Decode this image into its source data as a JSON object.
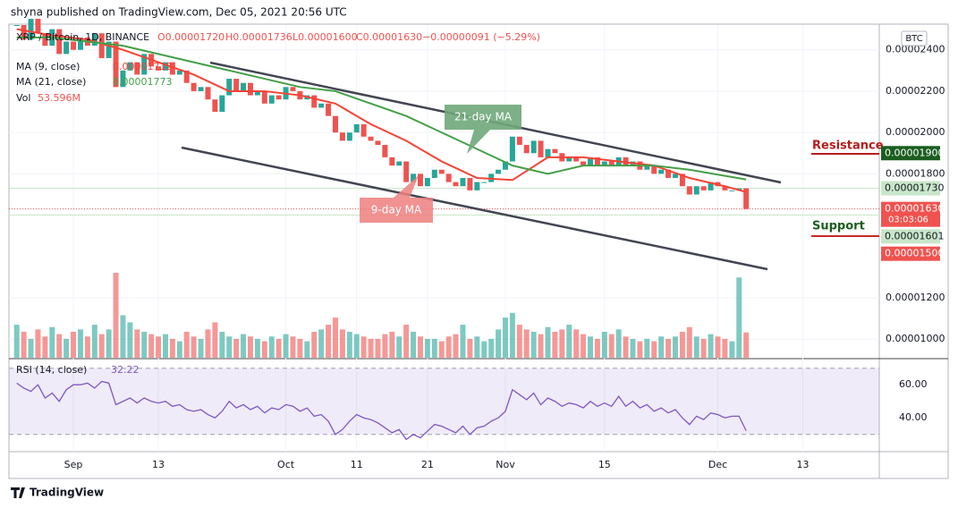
{
  "header": "shyna published on TradingView.com, Dec 05, 2021 20:56 UTC",
  "footer": "TradingView",
  "chart_data": {
    "type": "candlestick",
    "symbol": "XRP / Bitcoin, 1D, BINANCE",
    "ohlc_text": [
      "O0.00001720",
      "H0.00001736",
      "L0.00001600",
      "C0.00001630",
      "−0.00000091 (−5.29%)"
    ],
    "currency": "BTC",
    "up_color": "#26a69a",
    "down_color": "#ef5350",
    "xlim": [
      -9.1,
      113.8
    ],
    "xticks": [
      {
        "value": 0,
        "label": "Sep"
      },
      {
        "value": 12,
        "label": "13"
      },
      {
        "value": 30,
        "label": "Oct"
      },
      {
        "value": 40,
        "label": "11"
      },
      {
        "value": 50,
        "label": "21"
      },
      {
        "value": 61,
        "label": "Nov"
      },
      {
        "value": 75,
        "label": "15"
      },
      {
        "value": 91,
        "label": "Dec"
      },
      {
        "value": 103,
        "label": "13"
      }
    ],
    "x": [
      -8,
      -7,
      -6,
      -5,
      -4,
      -3,
      -2,
      -1,
      0,
      1,
      2,
      3,
      4,
      5,
      6,
      7,
      8,
      9,
      10,
      11,
      12,
      13,
      14,
      15,
      16,
      17,
      18,
      19,
      20,
      21,
      22,
      23,
      24,
      25,
      26,
      27,
      28,
      29,
      30,
      31,
      32,
      33,
      34,
      35,
      36,
      37,
      38,
      39,
      40,
      41,
      42,
      43,
      44,
      45,
      46,
      47,
      48,
      49,
      50,
      51,
      52,
      53,
      54,
      55,
      56,
      57,
      58,
      59,
      60,
      61,
      62,
      63,
      64,
      65,
      66,
      67,
      68,
      69,
      70,
      71,
      72,
      73,
      74,
      75,
      76,
      77,
      78,
      79,
      80,
      81,
      82,
      83,
      84,
      85,
      86,
      87,
      88,
      89,
      90,
      91,
      92,
      93,
      94,
      95
    ],
    "close": [
      2.52e-05,
      2.45e-05,
      2.55e-05,
      2.48e-05,
      2.42e-05,
      2.5e-05,
      2.38e-05,
      2.44e-05,
      2.4e-05,
      2.46e-05,
      2.42e-05,
      2.48e-05,
      2.36e-05,
      2.44e-05,
      2.22e-05,
      2.3e-05,
      2.34e-05,
      2.28e-05,
      2.38e-05,
      2.32e-05,
      2.3e-05,
      2.34e-05,
      2.28e-05,
      2.3e-05,
      2.24e-05,
      2.2e-05,
      2.22e-05,
      2.16e-05,
      2.1e-05,
      2.18e-05,
      2.26e-05,
      2.2e-05,
      2.24e-05,
      2.18e-05,
      2.2e-05,
      2.14e-05,
      2.18e-05,
      2.16e-05,
      2.22e-05,
      2.2e-05,
      2.16e-05,
      2.18e-05,
      2.12e-05,
      2.14e-05,
      2.08e-05,
      2e-05,
      1.96e-05,
      2e-05,
      2.04e-05,
      1.98e-05,
      1.96e-05,
      1.94e-05,
      1.88e-05,
      1.84e-05,
      1.86e-05,
      1.76e-05,
      1.8e-05,
      1.74e-05,
      1.78e-05,
      1.82e-05,
      1.8e-05,
      1.76e-05,
      1.74e-05,
      1.78e-05,
      1.72e-05,
      1.76e-05,
      1.76e-05,
      1.8e-05,
      1.82e-05,
      1.86e-05,
      1.98e-05,
      1.94e-05,
      1.9e-05,
      1.96e-05,
      1.88e-05,
      1.92e-05,
      1.9e-05,
      1.86e-05,
      1.88e-05,
      1.86e-05,
      1.84e-05,
      1.88e-05,
      1.84e-05,
      1.86e-05,
      1.84e-05,
      1.88e-05,
      1.84e-05,
      1.86e-05,
      1.82e-05,
      1.84e-05,
      1.8e-05,
      1.82e-05,
      1.78e-05,
      1.8e-05,
      1.74e-05,
      1.7e-05,
      1.74e-05,
      1.72e-05,
      1.76e-05,
      1.74e-05,
      1.72e-05,
      1.72e-05,
      1.73e-05,
      1.63e-05
    ],
    "volume": {
      "label": "Vol",
      "value_label": "53.596M",
      "values": [
        70,
        55,
        40,
        60,
        45,
        65,
        50,
        40,
        55,
        60,
        45,
        70,
        50,
        60,
        180,
        90,
        75,
        60,
        55,
        50,
        45,
        50,
        40,
        35,
        55,
        45,
        40,
        60,
        75,
        55,
        45,
        40,
        50,
        45,
        40,
        35,
        45,
        40,
        50,
        45,
        40,
        35,
        55,
        60,
        70,
        85,
        60,
        55,
        50,
        45,
        40,
        40,
        50,
        55,
        45,
        70,
        55,
        45,
        40,
        40,
        35,
        45,
        50,
        70,
        40,
        45,
        35,
        40,
        60,
        85,
        95,
        70,
        60,
        55,
        50,
        65,
        55,
        60,
        70,
        60,
        50,
        45,
        40,
        55,
        50,
        60,
        45,
        40,
        35,
        40,
        35,
        45,
        40,
        45,
        55,
        65,
        45,
        40,
        50,
        45,
        40,
        35,
        170,
        53.596
      ]
    },
    "ma": [
      {
        "name": "MA (9, close)",
        "value_label": "0.00001712",
        "color": "#f44336",
        "x": [
          -8,
          -3,
          2,
          7,
          12,
          17,
          22,
          27,
          32,
          37,
          42,
          47,
          52,
          57,
          62,
          67,
          72,
          77,
          82,
          87,
          92,
          95
        ],
        "values": [
          2.5e-05,
          2.47e-05,
          2.45e-05,
          2.4e-05,
          2.34e-05,
          2.28e-05,
          2.2e-05,
          2.2e-05,
          2.18e-05,
          2.14e-05,
          2.04e-05,
          1.96e-05,
          1.86e-05,
          1.78e-05,
          1.77e-05,
          1.88e-05,
          1.88e-05,
          1.86e-05,
          1.84e-05,
          1.78e-05,
          1.74e-05,
          1.712e-05
        ]
      },
      {
        "name": "MA (21, close)",
        "value_label": "0.00001773",
        "color": "#43a047",
        "x": [
          -8,
          -3,
          2,
          7,
          12,
          17,
          22,
          27,
          32,
          37,
          42,
          47,
          52,
          57,
          62,
          67,
          72,
          77,
          82,
          87,
          92,
          95
        ],
        "values": [
          2.46e-05,
          2.46e-05,
          2.44e-05,
          2.42e-05,
          2.38e-05,
          2.34e-05,
          2.3e-05,
          2.26e-05,
          2.22e-05,
          2.2e-05,
          2.14e-05,
          2.08e-05,
          2e-05,
          1.92e-05,
          1.84e-05,
          1.8e-05,
          1.84e-05,
          1.84e-05,
          1.84e-05,
          1.82e-05,
          1.79e-05,
          1.773e-05
        ]
      }
    ],
    "ylim": [
      9.1e-06,
      2.52e-05
    ],
    "yticks": [
      {
        "value": 2.4e-05,
        "label": "0.00002400"
      },
      {
        "value": 2.2e-05,
        "label": "0.00002200"
      },
      {
        "value": 2e-05,
        "label": "0.00002000"
      },
      {
        "value": 1.8e-05,
        "label": "0.00001800"
      },
      {
        "value": 1.2e-05,
        "label": "0.00001200"
      },
      {
        "value": 1e-05,
        "label": "0.00001000"
      }
    ],
    "price_labels": [
      {
        "value": 1.9e-05,
        "label": "0.00001900",
        "bg": "#1b5e20",
        "text_color": "#ffffff"
      },
      {
        "value": 1.73e-05,
        "label": "0.00001730",
        "bg": "#c8e6c9",
        "text_color": "#131722"
      },
      {
        "value": 1.63e-05,
        "label": "0.00001630",
        "bg": "#ef5350",
        "text_color": "#ffffff",
        "countdown": "03:03:06"
      },
      {
        "value": 1.601e-05,
        "label": "0.00001601",
        "bg": "#c8e6c9",
        "text_color": "#131722"
      },
      {
        "value": 1.5e-05,
        "label": "0.00001500",
        "bg": "#ef5350",
        "text_color": "#ffffff"
      }
    ],
    "annotations": {
      "resistance": "Resistance",
      "support": "Support",
      "ma21": "21-day MA",
      "ma9": "9-day MA"
    },
    "rsi": {
      "name": "RSI (14, close)",
      "value_label": "32.22",
      "color": "#7e57c2",
      "ylim": [
        19.6,
        74.7
      ],
      "yticks": [
        {
          "value": 60,
          "label": "60.00"
        },
        {
          "value": 40,
          "label": "40.00"
        }
      ],
      "band": [
        30,
        70
      ],
      "values": [
        61,
        58,
        56,
        60,
        52,
        55,
        50,
        57,
        60,
        60,
        61,
        58,
        62,
        61,
        48,
        50,
        52,
        49,
        52,
        50,
        49,
        50,
        47,
        48,
        45,
        44,
        45,
        42,
        40,
        44,
        50,
        46,
        48,
        45,
        47,
        43,
        46,
        45,
        48,
        47,
        44,
        46,
        41,
        42,
        38,
        30,
        33,
        38,
        42,
        40,
        39,
        37,
        34,
        31,
        33,
        27,
        30,
        28,
        32,
        36,
        35,
        33,
        31,
        35,
        30,
        34,
        35,
        38,
        40,
        44,
        57,
        54,
        51,
        55,
        48,
        52,
        50,
        47,
        49,
        48,
        46,
        50,
        47,
        49,
        47,
        53,
        47,
        50,
        46,
        48,
        44,
        46,
        43,
        45,
        40,
        36,
        41,
        39,
        43,
        42,
        40,
        41,
        41,
        32.22
      ]
    }
  }
}
